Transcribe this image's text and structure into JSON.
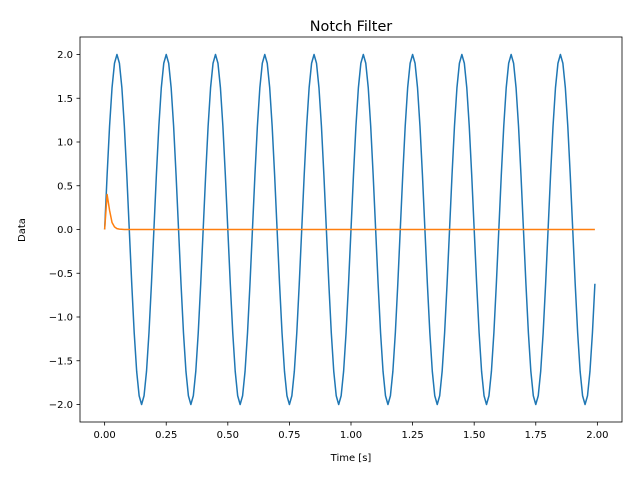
{
  "chart_data": {
    "type": "line",
    "title": "Notch Filter",
    "xlabel": "Time [s]",
    "ylabel": "Data",
    "xlim": [
      -0.1,
      2.1
    ],
    "ylim": [
      -2.2,
      2.2
    ],
    "xticks": [
      0.0,
      0.25,
      0.5,
      0.75,
      1.0,
      1.25,
      1.5,
      1.75,
      2.0
    ],
    "xtick_labels": [
      "0.00",
      "0.25",
      "0.50",
      "0.75",
      "1.00",
      "1.25",
      "1.50",
      "1.75",
      "2.00"
    ],
    "yticks": [
      -2.0,
      -1.5,
      -1.0,
      -0.5,
      0.0,
      0.5,
      1.0,
      1.5,
      2.0
    ],
    "ytick_labels": [
      "−2.0",
      "−1.5",
      "−1.0",
      "−0.5",
      "0.0",
      "0.5",
      "1.0",
      "1.5",
      "2.0"
    ],
    "grid": false,
    "legend": "none",
    "series": [
      {
        "color": "#1f77b4",
        "x_start": 0.0,
        "x_step": 0.01,
        "x_end": 1.99,
        "description": "sine wave, amplitude 2.0, frequency 5 Hz",
        "values": [
          0.0,
          0.62,
          1.18,
          1.62,
          1.9,
          2.0,
          1.9,
          1.62,
          1.18,
          0.62,
          0.0,
          -0.62,
          -1.18,
          -1.62,
          -1.9,
          -2.0,
          -1.9,
          -1.62,
          -1.18,
          -0.62,
          0.0,
          0.62,
          1.18,
          1.62,
          1.9,
          2.0,
          1.9,
          1.62,
          1.18,
          0.62,
          0.0,
          -0.62,
          -1.18,
          -1.62,
          -1.9,
          -2.0,
          -1.9,
          -1.62,
          -1.18,
          -0.62,
          0.0,
          0.62,
          1.18,
          1.62,
          1.9,
          2.0,
          1.9,
          1.62,
          1.18,
          0.62,
          0.0,
          -0.62,
          -1.18,
          -1.62,
          -1.9,
          -2.0,
          -1.9,
          -1.62,
          -1.18,
          -0.62,
          0.0,
          0.62,
          1.18,
          1.62,
          1.9,
          2.0,
          1.9,
          1.62,
          1.18,
          0.62,
          0.0,
          -0.62,
          -1.18,
          -1.62,
          -1.9,
          -2.0,
          -1.9,
          -1.62,
          -1.18,
          -0.62,
          0.0,
          0.62,
          1.18,
          1.62,
          1.9,
          2.0,
          1.9,
          1.62,
          1.18,
          0.62,
          0.0,
          -0.62,
          -1.18,
          -1.62,
          -1.9,
          -2.0,
          -1.9,
          -1.62,
          -1.18,
          -0.62,
          0.0,
          0.62,
          1.18,
          1.62,
          1.9,
          2.0,
          1.9,
          1.62,
          1.18,
          0.62,
          0.0,
          -0.62,
          -1.18,
          -1.62,
          -1.9,
          -2.0,
          -1.9,
          -1.62,
          -1.18,
          -0.62,
          0.0,
          0.62,
          1.18,
          1.62,
          1.9,
          2.0,
          1.9,
          1.62,
          1.18,
          0.62,
          0.0,
          -0.62,
          -1.18,
          -1.62,
          -1.9,
          -2.0,
          -1.9,
          -1.62,
          -1.18,
          -0.62,
          0.0,
          0.62,
          1.18,
          1.62,
          1.9,
          2.0,
          1.9,
          1.62,
          1.18,
          0.62,
          0.0,
          -0.62,
          -1.18,
          -1.62,
          -1.9,
          -2.0,
          -1.9,
          -1.62,
          -1.18,
          -0.62,
          0.0,
          0.62,
          1.18,
          1.62,
          1.9,
          2.0,
          1.9,
          1.62,
          1.18,
          0.62,
          0.0,
          -0.62,
          -1.18,
          -1.62,
          -1.9,
          -2.0,
          -1.9,
          -1.62,
          -1.18,
          -0.62,
          0.0,
          0.62,
          1.18,
          1.62,
          1.9,
          2.0,
          1.9,
          1.62,
          1.18,
          0.62,
          0.0,
          -0.62,
          -1.18,
          -1.62,
          -1.9,
          -2.0,
          -1.9,
          -1.62,
          -1.18,
          -0.62
        ]
      },
      {
        "color": "#ff7f0e",
        "x": [
          0.0,
          0.01,
          0.02,
          0.03,
          0.04,
          0.05,
          0.06,
          0.08,
          0.1,
          0.2,
          0.5,
          1.0,
          1.5,
          1.99
        ],
        "values": [
          0.0,
          0.4,
          0.22,
          0.08,
          0.03,
          0.01,
          0.004,
          0.0,
          0.0,
          0.0,
          0.0,
          0.0,
          0.0,
          0.0
        ]
      }
    ]
  }
}
